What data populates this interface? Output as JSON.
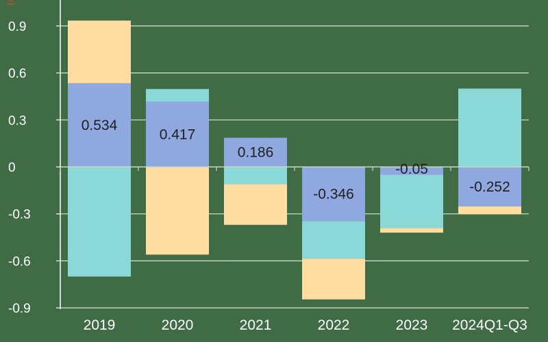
{
  "chart_data": {
    "type": "bar",
    "stacked": true,
    "ylabel": "(%)",
    "ylim": [
      -0.9,
      1.0
    ],
    "yticks": [
      "0.9",
      "0.6",
      "0.3",
      "0",
      "-0.3",
      "-0.6",
      "-0.9"
    ],
    "categories": [
      "2019",
      "2020",
      "2021",
      "2022",
      "2023",
      "2024Q1-Q3"
    ],
    "series": [
      {
        "values": [
          0.534,
          0.417,
          0.186,
          -0.346,
          -0.05,
          -0.252
        ]
      },
      {
        "values": [
          -0.7,
          0.08,
          -0.11,
          -0.24,
          -0.34,
          0.5
        ]
      },
      {
        "values": [
          0.4,
          -0.56,
          -0.26,
          -0.26,
          -0.03,
          -0.05
        ]
      }
    ],
    "data_labels": [
      "0.534",
      "0.417",
      "0.186",
      "-0.346",
      "-0.05",
      "-0.252"
    ],
    "colors": {
      "background": "#3f6b45",
      "blue": "#8fa8e0",
      "cyan": "#8ad8d8",
      "peach": "#ffdca0",
      "grid": "#d8e6d6",
      "axis": "#ffffff",
      "unit": "#e04a2a"
    },
    "grid": true,
    "legend": "none"
  }
}
